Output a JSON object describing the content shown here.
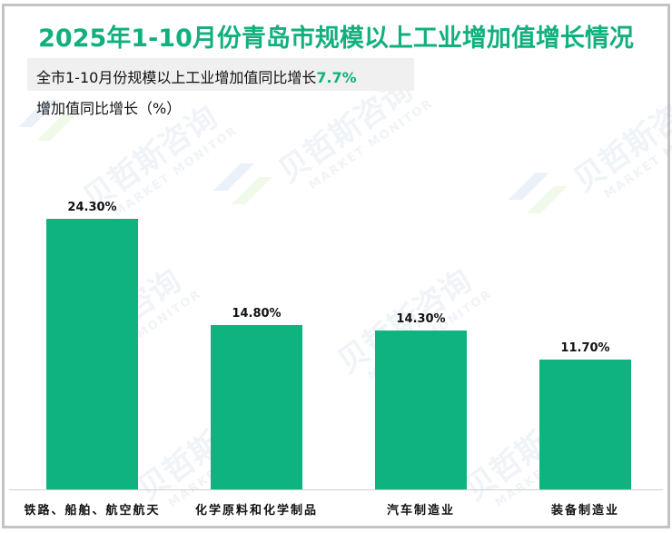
{
  "chart_data": {
    "type": "bar",
    "title": "2025年1-10月份青岛市规模以上工业增加值增长情况",
    "subtitle": "全市1-10月份规模以上工业增加值同比增长7.7%",
    "subtitle_prefix": "全市1-10月份规模以上工业增加值同比增长",
    "subtitle_value": "7.7%",
    "ylabel": "增加值同比增长（%）",
    "xlabel": "",
    "categories": [
      "铁路、船舶、航空航天",
      "化学原料和化学制品",
      "汽车制造业",
      "装备制造业"
    ],
    "values": [
      24.3,
      14.8,
      14.3,
      11.7
    ],
    "value_labels": [
      "24.30%",
      "14.80%",
      "14.30%",
      "11.70%"
    ],
    "ylim": [
      0,
      26
    ],
    "grid": false,
    "legend": "none",
    "bar_color": "#0fb37f",
    "title_color": "#11b07e"
  },
  "watermark": {
    "cn": "贝哲斯咨询",
    "en": "MARKET MONITOR"
  }
}
